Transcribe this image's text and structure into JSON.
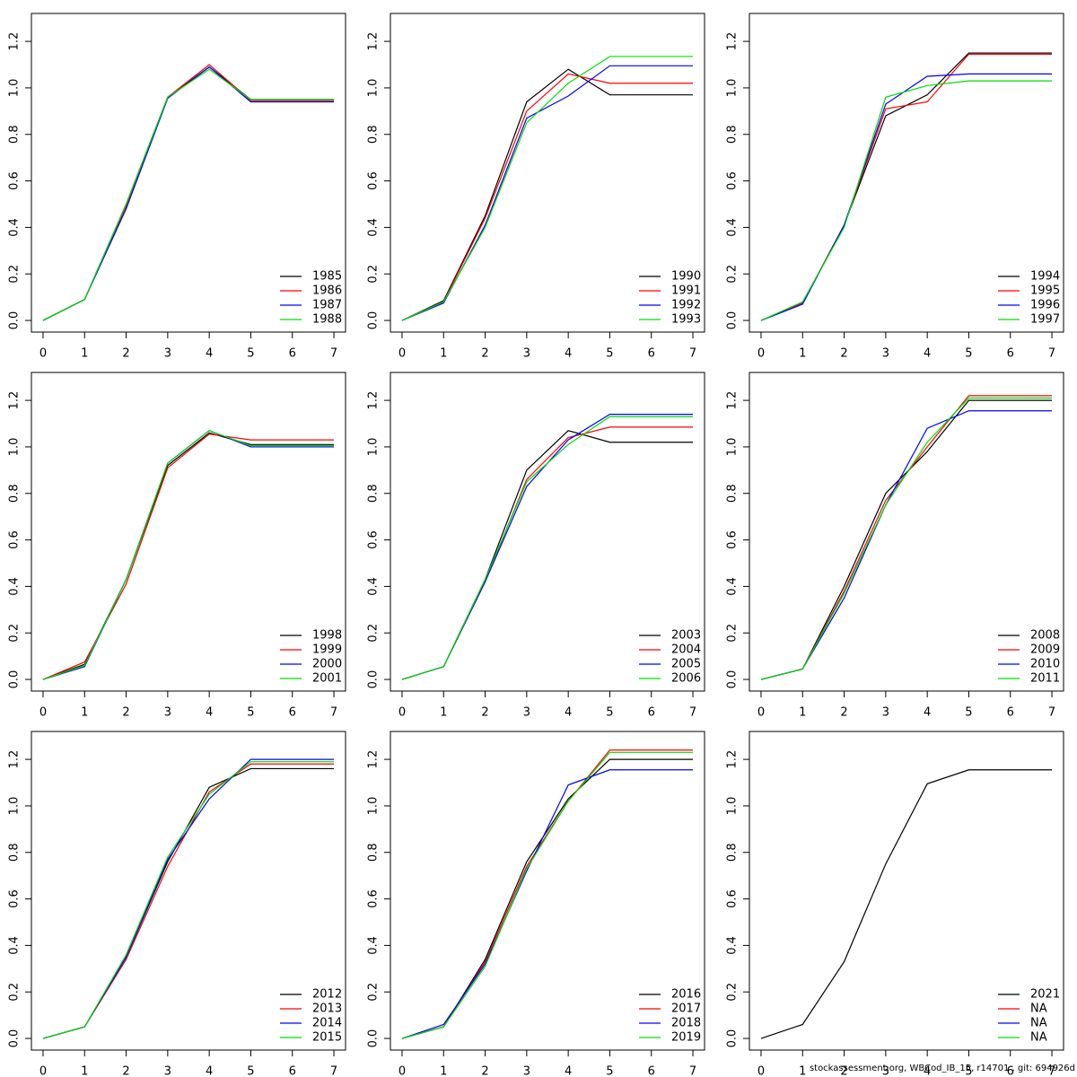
{
  "chart_data": [
    {
      "type": "line",
      "x": [
        0,
        1,
        2,
        3,
        4,
        5,
        6,
        7
      ],
      "xlim": [
        -0.28,
        7.28
      ],
      "ylim": [
        -0.05,
        1.32
      ],
      "xticks": [
        0,
        1,
        2,
        3,
        4,
        5,
        6,
        7
      ],
      "yticks": [
        {
          "value": 0,
          "label": "0.0"
        },
        0.2,
        0.4,
        0.6,
        0.8,
        {
          "value": 1,
          "label": "1.0"
        },
        1.2
      ],
      "legend": "bottomright",
      "series": [
        {
          "name": "1985",
          "color": "#000000",
          "values": [
            0,
            0.09,
            0.5,
            0.96,
            1.09,
            0.95,
            0.95,
            0.95
          ]
        },
        {
          "name": "1986",
          "color": "#ff0000",
          "values": [
            0,
            0.09,
            0.49,
            0.96,
            1.1,
            0.945,
            0.945,
            0.945
          ]
        },
        {
          "name": "1987",
          "color": "#0000ff",
          "values": [
            0,
            0.09,
            0.48,
            0.955,
            1.09,
            0.94,
            0.94,
            0.94
          ]
        },
        {
          "name": "1988",
          "color": "#00dd00",
          "values": [
            0,
            0.09,
            0.5,
            0.96,
            1.08,
            0.95,
            0.95,
            0.95
          ]
        }
      ]
    },
    {
      "type": "line",
      "x": [
        0,
        1,
        2,
        3,
        4,
        5,
        6,
        7
      ],
      "xlim": [
        -0.28,
        7.28
      ],
      "ylim": [
        -0.05,
        1.32
      ],
      "xticks": [
        0,
        1,
        2,
        3,
        4,
        5,
        6,
        7
      ],
      "yticks": [
        {
          "value": 0,
          "label": "0.0"
        },
        0.2,
        0.4,
        0.6,
        0.8,
        {
          "value": 1,
          "label": "1.0"
        },
        1.2
      ],
      "legend": "bottomright",
      "series": [
        {
          "name": "1990",
          "color": "#000000",
          "values": [
            0,
            0.085,
            0.45,
            0.94,
            1.08,
            0.97,
            0.97,
            0.97
          ]
        },
        {
          "name": "1991",
          "color": "#ff0000",
          "values": [
            0,
            0.08,
            0.44,
            0.9,
            1.06,
            1.02,
            1.02,
            1.02
          ]
        },
        {
          "name": "1992",
          "color": "#0000ff",
          "values": [
            0,
            0.075,
            0.41,
            0.87,
            0.965,
            1.095,
            1.095,
            1.095
          ]
        },
        {
          "name": "1993",
          "color": "#00dd00",
          "values": [
            0,
            0.08,
            0.4,
            0.85,
            1.02,
            1.135,
            1.135,
            1.135
          ]
        }
      ]
    },
    {
      "type": "line",
      "x": [
        0,
        1,
        2,
        3,
        4,
        5,
        6,
        7
      ],
      "xlim": [
        -0.28,
        7.28
      ],
      "ylim": [
        -0.05,
        1.32
      ],
      "xticks": [
        0,
        1,
        2,
        3,
        4,
        5,
        6,
        7
      ],
      "yticks": [
        {
          "value": 0,
          "label": "0.0"
        },
        0.2,
        0.4,
        0.6,
        0.8,
        {
          "value": 1,
          "label": "1.0"
        },
        1.2
      ],
      "legend": "bottomright",
      "series": [
        {
          "name": "1994",
          "color": "#000000",
          "values": [
            0,
            0.075,
            0.41,
            0.88,
            0.97,
            1.15,
            1.15,
            1.15
          ]
        },
        {
          "name": "1995",
          "color": "#ff0000",
          "values": [
            0,
            0.075,
            0.41,
            0.91,
            0.94,
            1.145,
            1.145,
            1.145
          ]
        },
        {
          "name": "1996",
          "color": "#0000ff",
          "values": [
            0,
            0.07,
            0.41,
            0.93,
            1.05,
            1.06,
            1.06,
            1.06
          ]
        },
        {
          "name": "1997",
          "color": "#00dd00",
          "values": [
            0,
            0.08,
            0.4,
            0.96,
            1.01,
            1.03,
            1.03,
            1.03
          ]
        }
      ]
    },
    {
      "type": "line",
      "x": [
        0,
        1,
        2,
        3,
        4,
        5,
        6,
        7
      ],
      "xlim": [
        -0.28,
        7.28
      ],
      "ylim": [
        -0.05,
        1.32
      ],
      "xticks": [
        0,
        1,
        2,
        3,
        4,
        5,
        6,
        7
      ],
      "yticks": [
        {
          "value": 0,
          "label": "0.0"
        },
        0.2,
        0.4,
        0.6,
        0.8,
        {
          "value": 1,
          "label": "1.0"
        },
        1.2
      ],
      "legend": "bottomright",
      "series": [
        {
          "name": "1998",
          "color": "#000000",
          "values": [
            0,
            0.065,
            0.43,
            0.92,
            1.06,
            1.01,
            1.01,
            1.01
          ]
        },
        {
          "name": "1999",
          "color": "#ff0000",
          "values": [
            0,
            0.075,
            0.41,
            0.91,
            1.055,
            1.03,
            1.03,
            1.03
          ]
        },
        {
          "name": "2000",
          "color": "#0000ff",
          "values": [
            0,
            0.055,
            0.43,
            0.93,
            1.07,
            1.0,
            1.0,
            1.0
          ]
        },
        {
          "name": "2001",
          "color": "#00dd00",
          "values": [
            0,
            0.06,
            0.43,
            0.93,
            1.07,
            1.005,
            1.005,
            1.005
          ]
        }
      ]
    },
    {
      "type": "line",
      "x": [
        0,
        1,
        2,
        3,
        4,
        5,
        6,
        7
      ],
      "xlim": [
        -0.28,
        7.28
      ],
      "ylim": [
        -0.05,
        1.32
      ],
      "xticks": [
        0,
        1,
        2,
        3,
        4,
        5,
        6,
        7
      ],
      "yticks": [
        {
          "value": 0,
          "label": "0.0"
        },
        0.2,
        0.4,
        0.6,
        0.8,
        {
          "value": 1,
          "label": "1.0"
        },
        1.2
      ],
      "legend": "bottomright",
      "series": [
        {
          "name": "2003",
          "color": "#000000",
          "values": [
            0,
            0.055,
            0.43,
            0.9,
            1.07,
            1.02,
            1.02,
            1.02
          ]
        },
        {
          "name": "2004",
          "color": "#ff0000",
          "values": [
            0,
            0.055,
            0.42,
            0.86,
            1.04,
            1.085,
            1.085,
            1.085
          ]
        },
        {
          "name": "2005",
          "color": "#0000ff",
          "values": [
            0,
            0.055,
            0.42,
            0.83,
            1.03,
            1.14,
            1.14,
            1.14
          ]
        },
        {
          "name": "2006",
          "color": "#00dd00",
          "values": [
            0,
            0.055,
            0.43,
            0.85,
            1.01,
            1.13,
            1.13,
            1.13
          ]
        }
      ]
    },
    {
      "type": "line",
      "x": [
        0,
        1,
        2,
        3,
        4,
        5,
        6,
        7
      ],
      "xlim": [
        -0.28,
        7.28
      ],
      "ylim": [
        -0.05,
        1.32
      ],
      "xticks": [
        0,
        1,
        2,
        3,
        4,
        5,
        6,
        7
      ],
      "yticks": [
        {
          "value": 0,
          "label": "0.0"
        },
        0.2,
        0.4,
        0.6,
        0.8,
        {
          "value": 1,
          "label": "1.0"
        },
        1.2
      ],
      "legend": "bottomright",
      "series": [
        {
          "name": "2008",
          "color": "#000000",
          "values": [
            0,
            0.045,
            0.4,
            0.8,
            0.98,
            1.2,
            1.2,
            1.2
          ]
        },
        {
          "name": "2009",
          "color": "#ff0000",
          "values": [
            0,
            0.045,
            0.38,
            0.77,
            1.0,
            1.22,
            1.22,
            1.22
          ]
        },
        {
          "name": "2010",
          "color": "#0000ff",
          "values": [
            0,
            0.045,
            0.35,
            0.75,
            1.08,
            1.155,
            1.155,
            1.155
          ]
        },
        {
          "name": "2011",
          "color": "#00dd00",
          "values": [
            0,
            0.045,
            0.37,
            0.75,
            1.02,
            1.21,
            1.21,
            1.21
          ]
        }
      ]
    },
    {
      "type": "line",
      "x": [
        0,
        1,
        2,
        3,
        4,
        5,
        6,
        7
      ],
      "xlim": [
        -0.28,
        7.28
      ],
      "ylim": [
        -0.05,
        1.32
      ],
      "xticks": [
        0,
        1,
        2,
        3,
        4,
        5,
        6,
        7
      ],
      "yticks": [
        {
          "value": 0,
          "label": "0.0"
        },
        0.2,
        0.4,
        0.6,
        0.8,
        {
          "value": 1,
          "label": "1.0"
        },
        1.2
      ],
      "legend": "bottomright",
      "series": [
        {
          "name": "2012",
          "color": "#000000",
          "values": [
            0,
            0.05,
            0.35,
            0.76,
            1.08,
            1.16,
            1.16,
            1.16
          ]
        },
        {
          "name": "2013",
          "color": "#ff0000",
          "values": [
            0,
            0.05,
            0.34,
            0.74,
            1.06,
            1.18,
            1.18,
            1.18
          ]
        },
        {
          "name": "2014",
          "color": "#0000ff",
          "values": [
            0,
            0.05,
            0.35,
            0.77,
            1.03,
            1.2,
            1.2,
            1.2
          ]
        },
        {
          "name": "2015",
          "color": "#00dd00",
          "values": [
            0,
            0.05,
            0.36,
            0.78,
            1.05,
            1.19,
            1.19,
            1.19
          ]
        }
      ]
    },
    {
      "type": "line",
      "x": [
        0,
        1,
        2,
        3,
        4,
        5,
        6,
        7
      ],
      "xlim": [
        -0.28,
        7.28
      ],
      "ylim": [
        -0.05,
        1.32
      ],
      "xticks": [
        0,
        1,
        2,
        3,
        4,
        5,
        6,
        7
      ],
      "yticks": [
        {
          "value": 0,
          "label": "0.0"
        },
        0.2,
        0.4,
        0.6,
        0.8,
        {
          "value": 1,
          "label": "1.0"
        },
        1.2
      ],
      "legend": "bottomright",
      "series": [
        {
          "name": "2016",
          "color": "#000000",
          "values": [
            0,
            0.05,
            0.34,
            0.76,
            1.03,
            1.2,
            1.2,
            1.2
          ]
        },
        {
          "name": "2017",
          "color": "#ff0000",
          "values": [
            0,
            0.05,
            0.33,
            0.74,
            1.02,
            1.24,
            1.24,
            1.24
          ]
        },
        {
          "name": "2018",
          "color": "#0000ff",
          "values": [
            0,
            0.06,
            0.32,
            0.72,
            1.09,
            1.155,
            1.155,
            1.155
          ]
        },
        {
          "name": "2019",
          "color": "#00dd00",
          "values": [
            0,
            0.05,
            0.31,
            0.73,
            1.02,
            1.23,
            1.23,
            1.23
          ]
        }
      ]
    },
    {
      "type": "line",
      "x": [
        0,
        1,
        2,
        3,
        4,
        5,
        6,
        7
      ],
      "xlim": [
        -0.28,
        7.28
      ],
      "ylim": [
        -0.05,
        1.32
      ],
      "xticks": [
        0,
        1,
        2,
        3,
        4,
        5,
        6,
        7
      ],
      "yticks": [
        {
          "value": 0,
          "label": "0.0"
        },
        0.2,
        0.4,
        0.6,
        0.8,
        {
          "value": 1,
          "label": "1.0"
        },
        1.2
      ],
      "legend": "bottomright",
      "series": [
        {
          "name": "2021",
          "color": "#000000",
          "values": [
            0,
            0.06,
            0.33,
            0.75,
            1.095,
            1.155,
            1.155,
            1.155
          ]
        },
        {
          "name": "NA",
          "color": "#ff0000",
          "values": [
            null,
            null,
            null,
            null,
            null,
            null,
            null,
            null
          ]
        },
        {
          "name": "NA",
          "color": "#0000ff",
          "values": [
            null,
            null,
            null,
            null,
            null,
            null,
            null,
            null
          ]
        },
        {
          "name": "NA",
          "color": "#00dd00",
          "values": [
            null,
            null,
            null,
            null,
            null,
            null,
            null,
            null
          ]
        }
      ]
    }
  ],
  "footer": "stockassessment.org, WBCod_IB_15, r14701 , git: 694926d"
}
